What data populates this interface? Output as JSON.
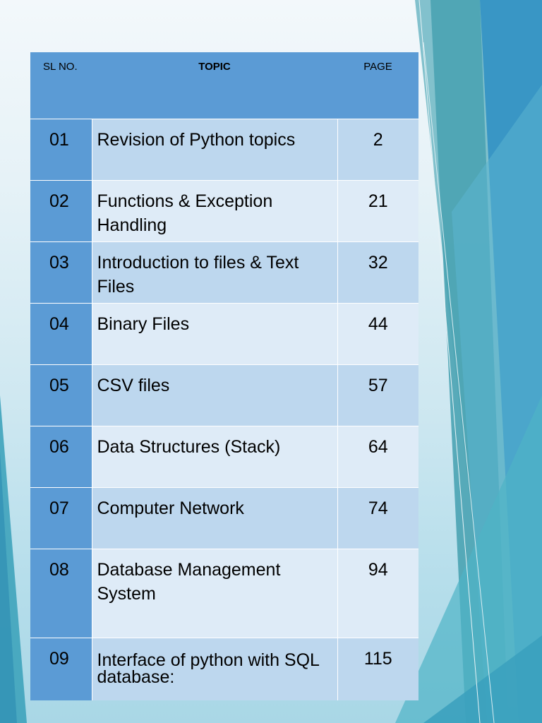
{
  "table": {
    "headers": {
      "sl_no": "SL NO.",
      "topic": "TOPIC",
      "page": "PAGE"
    },
    "rows": [
      {
        "sl_no": "01",
        "topic": "Revision of Python topics",
        "page": "2"
      },
      {
        "sl_no": "02",
        "topic": "Functions & Exception Handling",
        "page": "21"
      },
      {
        "sl_no": "03",
        "topic": "Introduction to files & Text Files",
        "page": "32"
      },
      {
        "sl_no": "04",
        "topic": "Binary Files",
        "page": "44"
      },
      {
        "sl_no": "05",
        "topic": "CSV files",
        "page": "57"
      },
      {
        "sl_no": "06",
        "topic": "Data Structures (Stack)",
        "page": "64"
      },
      {
        "sl_no": "07",
        "topic": "Computer Network",
        "page": "74"
      },
      {
        "sl_no": "08",
        "topic": "Database Management System",
        "page": "94"
      },
      {
        "sl_no": "09",
        "topic": "Interface of python with SQL database:",
        "page": "115"
      }
    ]
  },
  "colors": {
    "header_fill": "#5b9bd5",
    "row_band_dark": "#bdd7ee",
    "row_band_light": "#deebf7",
    "decoration_teal": "#3ba5b3",
    "decoration_blue": "#3593c4"
  }
}
